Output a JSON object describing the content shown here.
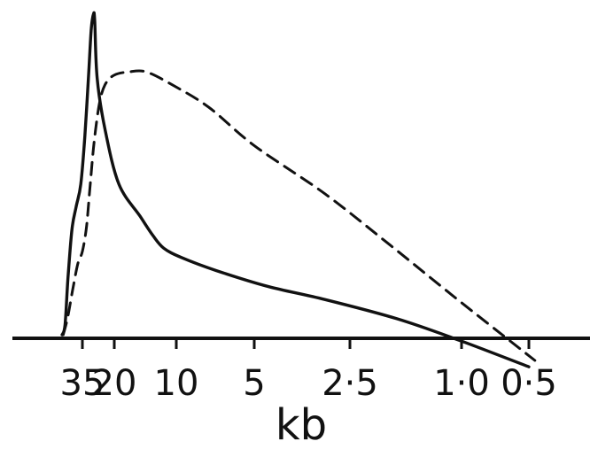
{
  "chart_data": {
    "type": "line",
    "title": "",
    "xlabel": "kb",
    "ylabel": "",
    "x_scale": "log-reversed",
    "xlim": [
      50,
      0.45
    ],
    "ylim": [
      0,
      100
    ],
    "x_ticks": [
      35,
      20,
      10,
      5,
      2.5,
      1.0,
      0.5
    ],
    "x_tick_labels": [
      "35",
      "20",
      "10",
      "5",
      "2·5",
      "1·0",
      "0·5"
    ],
    "grid": false,
    "legend": "none",
    "series": [
      {
        "line_style": "solid",
        "color": "#111111",
        "points": [
          [
            50,
            0
          ],
          [
            47.5,
            3
          ],
          [
            45,
            18
          ],
          [
            42,
            33
          ],
          [
            39,
            40
          ],
          [
            36,
            47
          ],
          [
            33.5,
            62
          ],
          [
            31.5,
            80
          ],
          [
            30,
            95
          ],
          [
            28.8,
            100
          ],
          [
            28.2,
            98
          ],
          [
            27,
            80
          ],
          [
            23.5,
            64
          ],
          [
            19,
            47
          ],
          [
            15,
            37
          ],
          [
            13,
            31
          ],
          [
            11.5,
            27
          ],
          [
            9.5,
            24
          ],
          [
            7,
            20
          ],
          [
            4.5,
            15
          ],
          [
            3,
            11
          ],
          [
            1.7,
            5
          ],
          [
            1.0,
            -2
          ],
          [
            0.5,
            -10
          ]
        ]
      },
      {
        "line_style": "dashed",
        "color": "#111111",
        "points": [
          [
            49,
            0
          ],
          [
            45.5,
            5
          ],
          [
            41.5,
            14
          ],
          [
            38,
            22
          ],
          [
            35,
            26
          ],
          [
            32.5,
            34
          ],
          [
            30.5,
            47
          ],
          [
            28.5,
            60
          ],
          [
            26,
            72
          ],
          [
            23.5,
            78
          ],
          [
            20,
            81
          ],
          [
            17,
            82
          ],
          [
            14,
            82
          ],
          [
            10.5,
            78
          ],
          [
            7.5,
            71
          ],
          [
            5,
            59
          ],
          [
            3,
            44
          ],
          [
            1.8,
            28
          ],
          [
            1.0,
            10
          ],
          [
            0.47,
            -8
          ]
        ]
      }
    ]
  }
}
